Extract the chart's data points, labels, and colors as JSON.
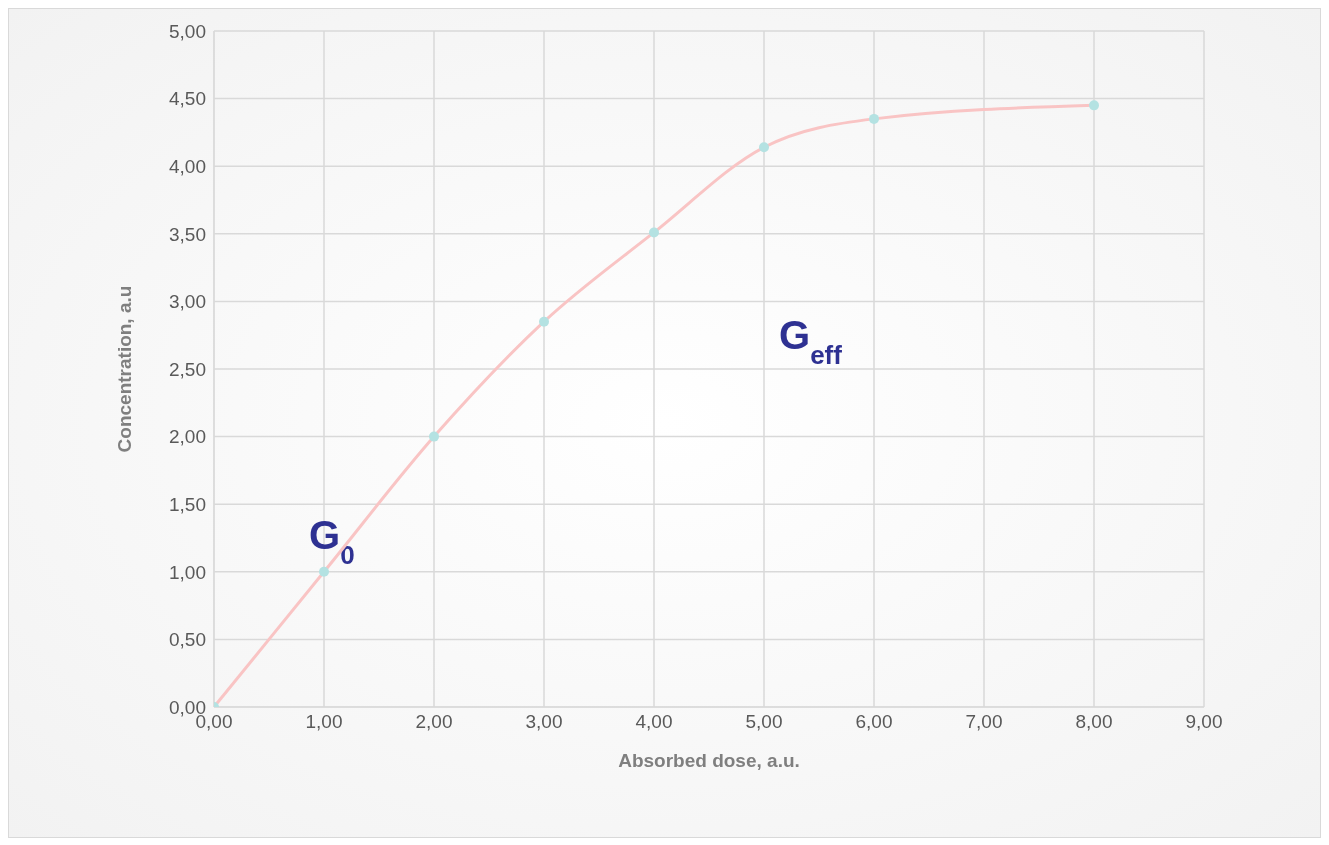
{
  "chart_data": {
    "type": "line",
    "xlabel": "Absorbed dose, a.u.",
    "ylabel": "Concentration, a.u",
    "x": [
      0,
      1,
      2,
      3,
      4,
      5,
      6,
      8
    ],
    "series": [
      {
        "color": "#f9c4c4",
        "colors": [
          "#b4e2e2",
          "#b4e2e2",
          "#b4e2e2",
          "#b4e2e2",
          "#b4e2e2",
          "#b4e2e2",
          "#b4e2e2",
          "#b4e2e2"
        ],
        "values": [
          0,
          1,
          2,
          2.85,
          3.51,
          4.14,
          4.35,
          4.45
        ]
      }
    ],
    "xlim": [
      0,
      9
    ],
    "ylim": [
      0,
      5
    ],
    "xticks": [
      {
        "value": 0,
        "label": "0,00"
      },
      {
        "value": 1,
        "label": "1,00"
      },
      {
        "value": 2,
        "label": "2,00"
      },
      {
        "value": 3,
        "label": "3,00"
      },
      {
        "value": 4,
        "label": "4,00"
      },
      {
        "value": 5,
        "label": "5,00"
      },
      {
        "value": 6,
        "label": "6,00"
      },
      {
        "value": 7,
        "label": "7,00"
      },
      {
        "value": 8,
        "label": "8,00"
      },
      {
        "value": 9,
        "label": "9,00"
      }
    ],
    "yticks": [
      {
        "value": 0,
        "label": "0,00"
      },
      {
        "value": 0.5,
        "label": "0,50"
      },
      {
        "value": 1,
        "label": "1,00"
      },
      {
        "value": 1.5,
        "label": "1,50"
      },
      {
        "value": 2,
        "label": "2,00"
      },
      {
        "value": 2.5,
        "label": "2,50"
      },
      {
        "value": 3,
        "label": "3,00"
      },
      {
        "value": 3.5,
        "label": "3,50"
      },
      {
        "value": 4,
        "label": "4,00"
      },
      {
        "value": 4.5,
        "label": "4,50"
      },
      {
        "value": 5,
        "label": "5,00"
      }
    ],
    "annotations": [
      "G$_{0}$",
      "G$_{eff}$"
    ],
    "grid": true,
    "marker": "circle",
    "line_style": "solid"
  }
}
